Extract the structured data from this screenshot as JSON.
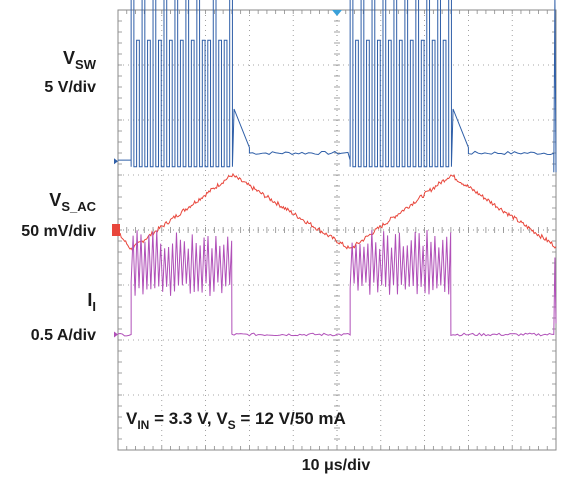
{
  "chart_data": {
    "type": "line",
    "title": "",
    "grid": true,
    "xlabel": "10 μs/div",
    "x_divisions": 10,
    "y_divisions": 8,
    "colors": {
      "vsw": "#2f5fa8",
      "vs_ac": "#e8463b",
      "ii": "#b050b8",
      "grid": "#8a8a8a",
      "trigger": "#3aa0d8",
      "ref": "#e8463b"
    },
    "channels": [
      {
        "id": "vsw",
        "name_main": "V",
        "name_sub": "SW",
        "scale": "5 V/div",
        "baseline_div": 1.25,
        "bursts_div": [
          [
            0.6,
            5.2
          ],
          [
            10.6,
            15.2
          ]
        ],
        "burst_amplitude_div": 3.1,
        "idle_level_div": 1.4,
        "end_burst_start_div": 20.0
      },
      {
        "id": "vs_ac",
        "name_main": "V",
        "name_sub": "S_AC",
        "scale": "50 mV/div",
        "points_div": [
          [
            0.0,
            -0.05
          ],
          [
            0.6,
            -0.35
          ],
          [
            5.2,
            1.0
          ],
          [
            10.6,
            -0.35
          ],
          [
            15.2,
            1.0
          ],
          [
            20.0,
            -0.3
          ]
        ]
      },
      {
        "id": "ii",
        "name_main": "I",
        "name_sub": "I",
        "scale": "0.5 A/div",
        "baseline_div": -1.9,
        "bursts_div": [
          [
            0.6,
            5.2
          ],
          [
            10.6,
            15.2
          ]
        ],
        "burst_low_div": -1.2,
        "burst_high_div": 0.0,
        "end_burst_start_div": 20.0
      }
    ],
    "annotation": {
      "vin_main": "V",
      "vin_sub": "IN",
      "vin_val": " = 3.3 V, ",
      "vs_main": "V",
      "vs_sub": "S",
      "vs_val": " = 12 V/50 mA"
    }
  }
}
